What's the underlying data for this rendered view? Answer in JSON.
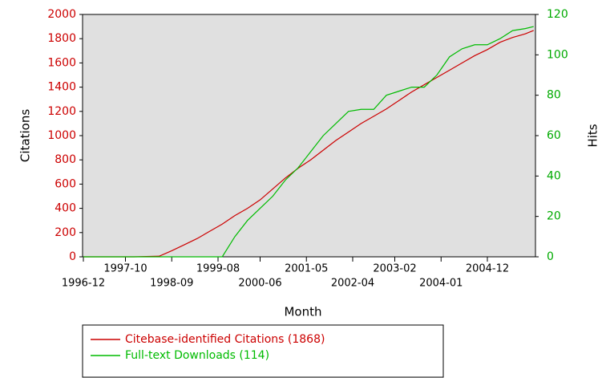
{
  "chart_data": {
    "type": "line",
    "x_label": "Month",
    "y_label": "Citations",
    "y2_label": "Hits",
    "x": [
      "1996-12",
      "1997-06",
      "1997-12",
      "1998-06",
      "1998-09",
      "1998-12",
      "1999-03",
      "1999-06",
      "1999-09",
      "1999-12",
      "2000-03",
      "2000-06",
      "2000-09",
      "2000-12",
      "2001-03",
      "2001-06",
      "2001-09",
      "2001-12",
      "2002-03",
      "2002-06",
      "2002-09",
      "2002-12",
      "2003-03",
      "2003-06",
      "2003-09",
      "2003-12",
      "2004-03",
      "2004-06",
      "2004-09",
      "2004-12",
      "2005-03",
      "2005-06",
      "2005-09",
      "2005-11"
    ],
    "series": [
      {
        "name": "Citebase-identified Citations (1868)",
        "color": "#cc0000",
        "axis": "y",
        "values": [
          0,
          0,
          0,
          5,
          50,
          100,
          150,
          210,
          270,
          340,
          400,
          470,
          560,
          650,
          730,
          800,
          880,
          960,
          1030,
          1100,
          1160,
          1220,
          1290,
          1360,
          1420,
          1480,
          1540,
          1600,
          1660,
          1710,
          1770,
          1810,
          1840,
          1868
        ]
      },
      {
        "name": "Full-text Downloads (114)",
        "color": "#00bb00",
        "axis": "y2",
        "values": [
          0,
          0,
          0,
          0,
          0,
          0,
          0,
          0,
          0,
          10,
          18,
          24,
          30,
          38,
          44,
          52,
          60,
          66,
          72,
          73,
          73,
          80,
          82,
          84,
          84,
          90,
          99,
          103,
          105,
          105,
          108,
          112,
          113,
          114
        ]
      }
    ],
    "xticks": [
      "1996-12",
      "1997-10",
      "1998-09",
      "1999-08",
      "2000-06",
      "2001-05",
      "2002-04",
      "2003-02",
      "2004-01",
      "2004-12"
    ],
    "ylim": [
      0,
      2000
    ],
    "yticks": [
      0,
      200,
      400,
      600,
      800,
      1000,
      1200,
      1400,
      1600,
      1800,
      2000
    ],
    "y2lim": [
      0,
      120
    ],
    "y2ticks": [
      0,
      20,
      40,
      60,
      80,
      100,
      120
    ]
  }
}
